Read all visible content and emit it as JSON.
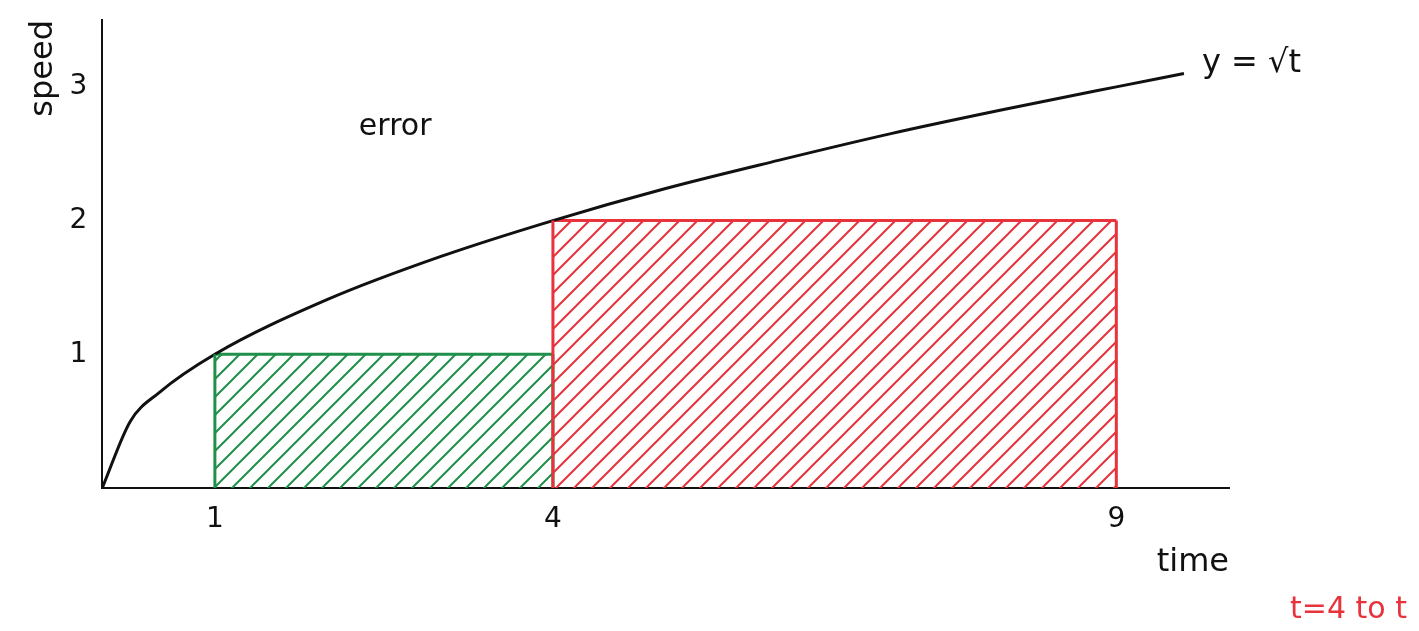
{
  "chart_data": {
    "type": "line",
    "x_label": "time",
    "y_label": "speed",
    "xlim": [
      0,
      10
    ],
    "ylim": [
      0,
      3.5
    ],
    "xticks": [
      1,
      4,
      9
    ],
    "yticks": [
      1,
      2,
      3
    ],
    "grid": false,
    "series": [
      {
        "name": "y = √t",
        "color": "#111111",
        "line_style": "solid",
        "x": [
          0,
          0.25,
          0.5,
          1,
          2,
          3,
          4,
          5,
          6,
          7,
          8,
          9,
          9.6
        ],
        "values": [
          0,
          0.5,
          0.71,
          1,
          1.41,
          1.73,
          2,
          2.24,
          2.45,
          2.65,
          2.83,
          3,
          3.1
        ]
      },
      {
        "type": "area",
        "color": "#1f8f4a",
        "x": [
          1,
          4
        ],
        "values": [
          1,
          1
        ]
      },
      {
        "type": "area",
        "color": "#e8323c",
        "x": [
          4,
          9
        ],
        "values": [
          2,
          2
        ]
      }
    ],
    "annotations": [
      {
        "text": "error",
        "x": 2.6,
        "y": 2.7,
        "color": "#111111"
      },
      {
        "text": "t=4 to t",
        "color": "#e8323c"
      }
    ]
  }
}
